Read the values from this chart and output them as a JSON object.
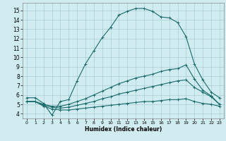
{
  "xlabel": "Humidex (Indice chaleur)",
  "bg_color": "#d0ecf0",
  "grid_color": "#aacdd5",
  "line_color": "#1a6b6b",
  "xlim": [
    -0.5,
    23.5
  ],
  "ylim": [
    3.5,
    15.8
  ],
  "xticks": [
    0,
    1,
    2,
    3,
    4,
    5,
    6,
    7,
    8,
    9,
    10,
    11,
    12,
    13,
    14,
    15,
    16,
    17,
    18,
    19,
    20,
    21,
    22,
    23
  ],
  "yticks": [
    4,
    5,
    6,
    7,
    8,
    9,
    10,
    11,
    12,
    13,
    14,
    15
  ],
  "series1_x": [
    0,
    1,
    2,
    3,
    4,
    5,
    6,
    7,
    8,
    9,
    10,
    11,
    12,
    13,
    14,
    15,
    16,
    17,
    18,
    19,
    20,
    21,
    22,
    23
  ],
  "series1_y": [
    5.7,
    5.7,
    5.1,
    3.85,
    5.3,
    5.5,
    7.5,
    9.3,
    10.7,
    12.1,
    13.2,
    14.5,
    14.9,
    15.2,
    15.2,
    14.9,
    14.3,
    14.2,
    13.7,
    12.2,
    9.3,
    7.6,
    6.3,
    5.7
  ],
  "series2_x": [
    0,
    1,
    2,
    3,
    4,
    5,
    6,
    7,
    8,
    9,
    10,
    11,
    12,
    13,
    14,
    15,
    16,
    17,
    18,
    19,
    20,
    21,
    22,
    23
  ],
  "series2_y": [
    5.3,
    5.3,
    5.0,
    4.8,
    4.8,
    5.0,
    5.3,
    5.6,
    6.0,
    6.4,
    6.8,
    7.2,
    7.5,
    7.8,
    8.0,
    8.2,
    8.5,
    8.7,
    8.8,
    9.2,
    7.7,
    6.5,
    5.9,
    5.0
  ],
  "series3_x": [
    0,
    1,
    2,
    3,
    4,
    5,
    6,
    7,
    8,
    9,
    10,
    11,
    12,
    13,
    14,
    15,
    16,
    17,
    18,
    19,
    20,
    21,
    22,
    23
  ],
  "series3_y": [
    5.3,
    5.3,
    4.9,
    4.7,
    4.6,
    4.7,
    4.9,
    5.1,
    5.3,
    5.6,
    5.8,
    6.1,
    6.3,
    6.5,
    6.7,
    6.9,
    7.1,
    7.3,
    7.5,
    7.6,
    6.8,
    6.3,
    5.8,
    5.0
  ],
  "series4_x": [
    0,
    1,
    2,
    3,
    4,
    5,
    6,
    7,
    8,
    9,
    10,
    11,
    12,
    13,
    14,
    15,
    16,
    17,
    18,
    19,
    20,
    21,
    22,
    23
  ],
  "series4_y": [
    5.3,
    5.3,
    4.8,
    4.5,
    4.4,
    4.4,
    4.5,
    4.6,
    4.7,
    4.8,
    4.9,
    5.0,
    5.1,
    5.2,
    5.3,
    5.3,
    5.4,
    5.5,
    5.5,
    5.6,
    5.3,
    5.1,
    5.0,
    4.8
  ]
}
